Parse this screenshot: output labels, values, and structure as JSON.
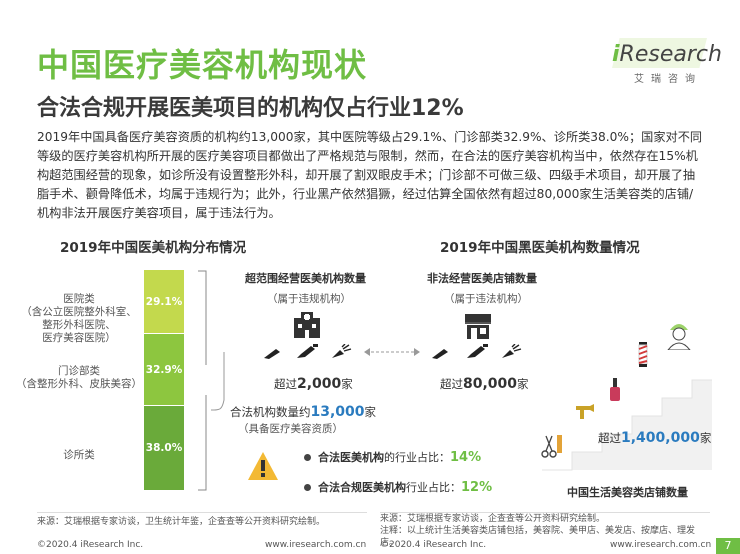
{
  "header": {
    "title": "中国医疗美容机构现状",
    "subtitle": "合法合规开展医美项目的机构仅占行业12%",
    "logo_word_i": "i",
    "logo_word_rest": "Research",
    "logo_sub": "艾瑞咨询",
    "accent_color": "#6fbe44"
  },
  "body_text": "2019年中国具备医疗美容资质的机构约13,000家，其中医院等级占29.1%、门诊部类32.9%、诊所类38.0%；国家对不同等级的医疗美容机构所开展的医疗美容项目都做出了严格规范与限制，然而，在合法的医疗美容机构当中，依然存在15%机构超范围经营的现象，如诊所没有设置整形外科，却开展了割双眼皮手术；门诊部不可做三级、四级手术项目，却开展了抽脂手术、颧骨降低术，均属于违规行为；此外，行业黑产依然猖獗，经过估算全国依然有超过80,000家生活美容类的店铺/机构非法开展医疗美容项目，属于违法行为。",
  "left_section": {
    "title": "2019年中国医美机构分布情况",
    "bracket_label_prefix": "合法机构数量约",
    "bracket_label_num": "13,000",
    "bracket_label_suffix": "家",
    "bracket_sub": "（具备医疗美容资质）"
  },
  "chart_data": {
    "type": "bar",
    "orientation": "stacked-vertical",
    "title": "2019年中国医美机构分布情况",
    "unit": "%",
    "categories": [
      "医院类",
      "门诊部类",
      "诊所类"
    ],
    "category_notes": [
      "（含公立医院整外科室、整形外科医院、医疗美容医院）",
      "（含整形外科、皮肤美容）",
      ""
    ],
    "values": [
      29.1,
      32.9,
      38.0
    ],
    "value_labels": [
      "29.1%",
      "32.9%",
      "38.0%"
    ],
    "colors": [
      "#c3d94d",
      "#8dc63f",
      "#6aaa3a"
    ],
    "total_label": "13,000"
  },
  "cat_labels": {
    "c0_l1": "医院类",
    "c0_l2": "（含公立医院整外科室、",
    "c0_l3": "整形外科医院、",
    "c0_l4": "医疗美容医院）",
    "c1_l1": "门诊部类",
    "c1_l2": "（含整形外科、皮肤美容）",
    "c2_l1": "诊所类"
  },
  "middle": {
    "over_scope_title": "超范围经营医美机构数量",
    "over_scope_sub": "（属于违规机构）",
    "over_scope_num_prefix": "超过",
    "over_scope_num": "2,000",
    "over_scope_num_suffix": "家",
    "illegal_title": "非法经营医美店铺数量",
    "illegal_sub": "（属于违法机构）",
    "illegal_num_prefix": "超过",
    "illegal_num": "80,000",
    "illegal_num_suffix": "家"
  },
  "right_section": {
    "title": "2019年中国黑医美机构数量情况",
    "stairs_num_prefix": "超过",
    "stairs_num": "1,400,000",
    "stairs_num_suffix": "家",
    "stairs_caption": "中国生活美容类店铺数量"
  },
  "legend": {
    "line1_bold": "合法医美机构",
    "line1_rest": "的行业占比：",
    "line1_val": "14%",
    "line2_bold": "合法合规医美机构",
    "line2_rest": "行业占比：",
    "line2_val": "12%"
  },
  "footer": {
    "left_source": "来源：艾瑞根据专家访谈，卫生统计年鉴，企查查等公开资料研究绘制。",
    "right_source": "来源：艾瑞根据专家访谈，企查查等公开资料研究绘制。",
    "right_note": "注释：以上统计生活美容类店铺包括，美容院、美甲店、美发店、按摩店、理发店。",
    "copyright_left": "©2020.4 iResearch Inc.",
    "url_left": "www.iresearch.com.cn",
    "copyright_right": "©2020.4 iResearch Inc.",
    "url_right": "www.iresearch.com.cn",
    "page": "7"
  },
  "icons": [
    "hospital-icon",
    "shop-icon",
    "scalpel-icon",
    "syringe-icon",
    "laser-icon",
    "warning-icon",
    "nurse-icon",
    "barber-pole-icon",
    "comb-scissors-icon",
    "nail-polish-icon",
    "hairdryer-icon"
  ]
}
